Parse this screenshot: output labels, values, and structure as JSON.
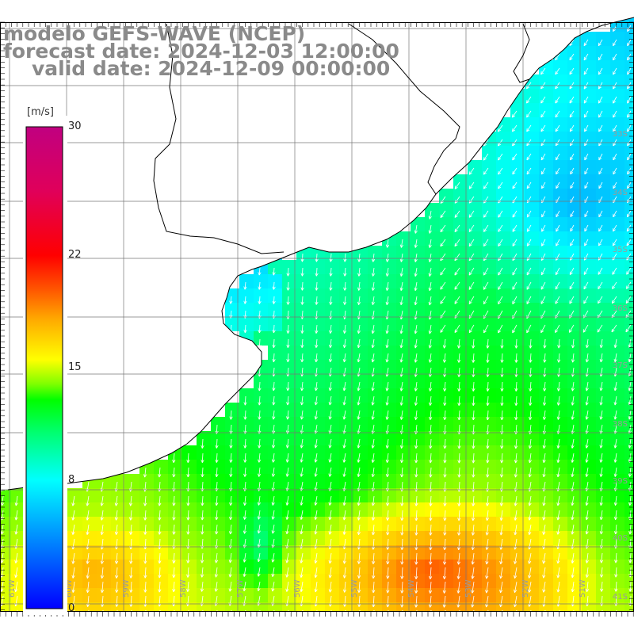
{
  "title": {
    "line1": "modelo GEFS-WAVE (NCEP)",
    "line2": "forecast date: 2024-12-03 12:00:00",
    "line3": "valid date: 2024-12-09 00:00:00"
  },
  "colorbar": {
    "unit": "[m/s]",
    "ticks": [
      "30",
      "22",
      "15",
      "8",
      "0"
    ],
    "tick_values": [
      30,
      22,
      15,
      8,
      0
    ],
    "min": 0,
    "max": 30,
    "colors": [
      "#0000ff",
      "#0080ff",
      "#00ffff",
      "#00ff80",
      "#00ff00",
      "#80ff00",
      "#ffff00",
      "#ffa000",
      "#ff4000",
      "#ff0000",
      "#e0005a",
      "#c00080"
    ]
  },
  "grid": {
    "lat_labels": [
      "33S",
      "34S",
      "35S",
      "36S",
      "37S",
      "38S",
      "39S",
      "40S",
      "41S"
    ],
    "lon_labels": [
      "61W",
      "60W",
      "59W",
      "58W",
      "57W",
      "56W",
      "55W",
      "54W",
      "53W",
      "52W",
      "51W"
    ]
  },
  "map": {
    "variable": "wind speed and direction",
    "land_color": "#ffffff",
    "coast_color": "#000000",
    "arrow_color": "#ffffff"
  }
}
